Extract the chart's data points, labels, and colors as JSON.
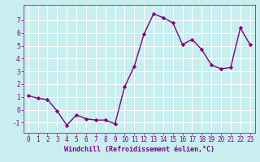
{
  "x": [
    0,
    1,
    2,
    3,
    4,
    5,
    6,
    7,
    8,
    9,
    10,
    11,
    12,
    13,
    14,
    15,
    16,
    17,
    18,
    19,
    20,
    21,
    22,
    23
  ],
  "y": [
    1.1,
    0.9,
    0.8,
    -0.1,
    -1.2,
    -0.4,
    -0.7,
    -0.8,
    -0.8,
    -1.1,
    1.8,
    3.4,
    5.9,
    7.5,
    7.2,
    6.8,
    5.1,
    5.5,
    4.7,
    3.5,
    3.2,
    3.3,
    6.4,
    5.1
  ],
  "line_color": "#800080",
  "marker": "D",
  "marker_size": 2.2,
  "bg_color": "#c8eef0",
  "grid_color": "#ffffff",
  "xlabel": "Windchill (Refroidissement éolien,°C)",
  "xlabel_color": "#800080",
  "tick_color": "#800080",
  "ylim": [
    -1.8,
    8.2
  ],
  "yticks": [
    -1,
    0,
    1,
    2,
    3,
    4,
    5,
    6,
    7
  ],
  "xlim": [
    -0.5,
    23.5
  ],
  "xticks": [
    0,
    1,
    2,
    3,
    4,
    5,
    6,
    7,
    8,
    9,
    10,
    11,
    12,
    13,
    14,
    15,
    16,
    17,
    18,
    19,
    20,
    21,
    22,
    23
  ],
  "font_family": "monospace",
  "tick_fontsize": 5.5,
  "xlabel_fontsize": 6.0,
  "linewidth": 1.0
}
